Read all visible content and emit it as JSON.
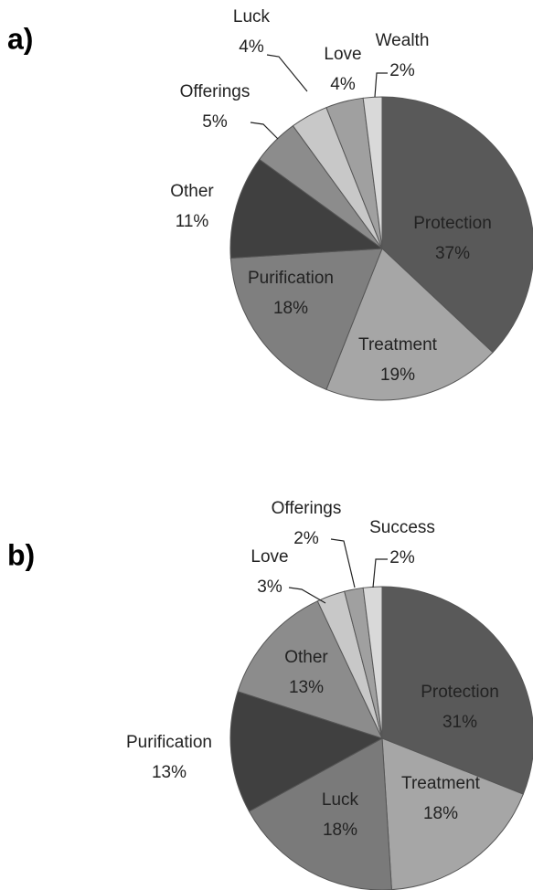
{
  "chart_data": [
    {
      "type": "pie",
      "title": "a)",
      "categories": [
        "Protection",
        "Treatment",
        "Purification",
        "Other",
        "Offerings",
        "Luck",
        "Love",
        "Wealth"
      ],
      "values": [
        37,
        19,
        18,
        11,
        5,
        4,
        4,
        2
      ],
      "value_labels": [
        "37%",
        "19%",
        "18%",
        "11%",
        "5%",
        "4%",
        "4%",
        "2%"
      ],
      "colors": [
        "#595959",
        "#a6a6a6",
        "#7f7f7f",
        "#404040",
        "#8c8c8c",
        "#c8c8c8",
        "#a0a0a0",
        "#d9d9d9"
      ]
    },
    {
      "type": "pie",
      "title": "b)",
      "categories": [
        "Protection",
        "Treatment",
        "Luck",
        "Purification",
        "Other",
        "Love",
        "Offerings",
        "Success"
      ],
      "values": [
        31,
        18,
        18,
        13,
        13,
        3,
        2,
        2
      ],
      "value_labels": [
        "31%",
        "18%",
        "18%",
        "13%",
        "13%",
        "3%",
        "2%",
        "2%"
      ],
      "colors": [
        "#595959",
        "#a6a6a6",
        "#7a7a7a",
        "#404040",
        "#8c8c8c",
        "#c8c8c8",
        "#a0a0a0",
        "#d9d9d9"
      ]
    }
  ]
}
